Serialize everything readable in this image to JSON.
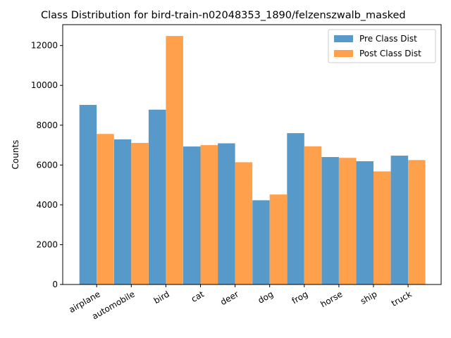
{
  "chart_data": {
    "type": "bar",
    "title": "Class Distribution for bird-train-n02048353_1890/felzenszwalb_masked",
    "xlabel": "",
    "ylabel": "Counts",
    "categories": [
      "airplane",
      "automobile",
      "bird",
      "cat",
      "deer",
      "dog",
      "frog",
      "horse",
      "ship",
      "truck"
    ],
    "series": [
      {
        "name": "Pre Class Dist",
        "color": "#5799c8",
        "values": [
          9020,
          7290,
          8780,
          6930,
          7090,
          4230,
          7600,
          6400,
          6190,
          6470
        ]
      },
      {
        "name": "Post Class Dist",
        "color": "#ffa04d",
        "values": [
          7560,
          7110,
          12480,
          7000,
          6140,
          4520,
          6940,
          6360,
          5680,
          6250
        ]
      }
    ],
    "ylim": [
      0,
      13050
    ],
    "yticks": [
      0,
      2000,
      4000,
      6000,
      8000,
      10000,
      12000
    ],
    "legend": "top-right",
    "grid": false
  }
}
